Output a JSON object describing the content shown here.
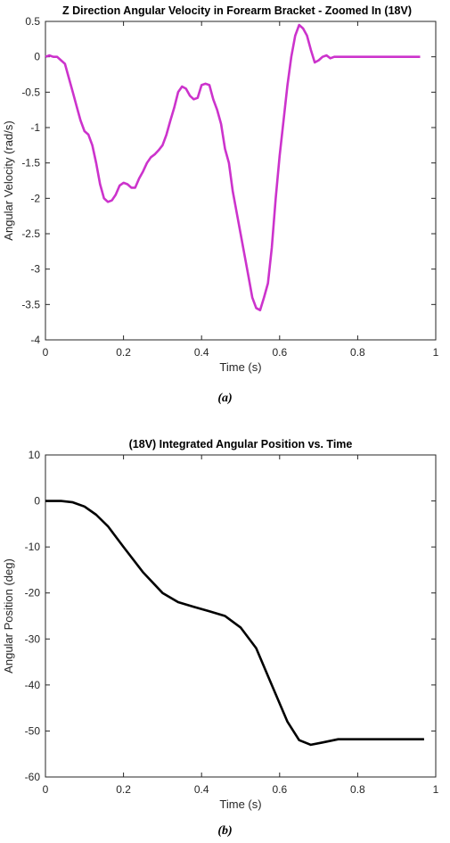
{
  "chart_data": [
    {
      "type": "line",
      "title": "Z Direction Angular Velocity in Forearm Bracket - Zoomed In (18V)",
      "xlabel": "Time (s)",
      "ylabel": "Angular Velocity (rad/s)",
      "xlim": [
        0,
        1
      ],
      "ylim": [
        -4,
        0.5
      ],
      "xticks": [
        "0",
        "0.2",
        "0.4",
        "0.6",
        "0.8",
        "1"
      ],
      "yticks": [
        "-4",
        "-3.5",
        "-3",
        "-2.5",
        "-2",
        "-1.5",
        "-1",
        "-0.5",
        "0",
        "0.5"
      ],
      "grid": false,
      "color": "#cc33cc",
      "caption": "(a)",
      "series": [
        {
          "x": [
            0,
            0.01,
            0.02,
            0.03,
            0.04,
            0.05,
            0.06,
            0.07,
            0.08,
            0.09,
            0.1,
            0.11,
            0.12,
            0.13,
            0.14,
            0.15,
            0.16,
            0.17,
            0.18,
            0.19,
            0.2,
            0.21,
            0.22,
            0.23,
            0.24,
            0.25,
            0.26,
            0.27,
            0.28,
            0.29,
            0.3,
            0.31,
            0.32,
            0.33,
            0.34,
            0.35,
            0.36,
            0.37,
            0.38,
            0.39,
            0.4,
            0.41,
            0.42,
            0.43,
            0.44,
            0.45,
            0.46,
            0.47,
            0.48,
            0.49,
            0.5,
            0.51,
            0.52,
            0.53,
            0.54,
            0.55,
            0.56,
            0.57,
            0.58,
            0.59,
            0.6,
            0.61,
            0.62,
            0.63,
            0.64,
            0.65,
            0.66,
            0.67,
            0.68,
            0.69,
            0.7,
            0.71,
            0.72,
            0.73,
            0.74,
            0.75,
            0.76,
            0.77,
            0.78,
            0.79,
            0.8,
            0.82,
            0.84,
            0.86,
            0.88,
            0.9,
            0.92,
            0.94,
            0.96
          ],
          "y": [
            0,
            0.02,
            0,
            0,
            -0.05,
            -0.1,
            -0.3,
            -0.5,
            -0.7,
            -0.9,
            -1.05,
            -1.1,
            -1.25,
            -1.5,
            -1.8,
            -2.0,
            -2.05,
            -2.03,
            -1.95,
            -1.82,
            -1.78,
            -1.8,
            -1.85,
            -1.85,
            -1.72,
            -1.62,
            -1.5,
            -1.42,
            -1.38,
            -1.32,
            -1.25,
            -1.1,
            -0.9,
            -0.72,
            -0.5,
            -0.42,
            -0.45,
            -0.55,
            -0.6,
            -0.58,
            -0.4,
            -0.38,
            -0.4,
            -0.6,
            -0.75,
            -0.95,
            -1.3,
            -1.5,
            -1.9,
            -2.2,
            -2.5,
            -2.8,
            -3.1,
            -3.4,
            -3.55,
            -3.58,
            -3.4,
            -3.2,
            -2.7,
            -2.0,
            -1.4,
            -0.9,
            -0.4,
            0.0,
            0.3,
            0.45,
            0.4,
            0.3,
            0.1,
            -0.08,
            -0.05,
            0.0,
            0.02,
            -0.02,
            0.0,
            0.0,
            0.0,
            0.0,
            0.0,
            0.0,
            0.0,
            0.0,
            0.0,
            0.0,
            0.0,
            0.0,
            0.0,
            0.0,
            0.0
          ]
        }
      ]
    },
    {
      "type": "line",
      "title": "(18V) Integrated Angular Position vs. Time",
      "xlabel": "Time (s)",
      "ylabel": "Angular Position (deg)",
      "xlim": [
        0,
        1
      ],
      "ylim": [
        -60,
        10
      ],
      "xticks": [
        "0",
        "0.2",
        "0.4",
        "0.6",
        "0.8",
        "1"
      ],
      "yticks": [
        "-60",
        "-50",
        "-40",
        "-30",
        "-20",
        "-10",
        "0",
        "10"
      ],
      "grid": false,
      "color": "#000000",
      "caption": "(b)",
      "series": [
        {
          "x": [
            0,
            0.04,
            0.07,
            0.1,
            0.13,
            0.16,
            0.2,
            0.25,
            0.3,
            0.34,
            0.38,
            0.42,
            0.46,
            0.5,
            0.54,
            0.58,
            0.62,
            0.65,
            0.68,
            0.71,
            0.75,
            0.8,
            0.9,
            0.97
          ],
          "y": [
            0,
            0,
            -0.3,
            -1.2,
            -3,
            -5.5,
            -10,
            -15.5,
            -20,
            -22,
            -23,
            -24,
            -25,
            -27.5,
            -32,
            -40,
            -48,
            -52,
            -53,
            -52.5,
            -51.8,
            -51.8,
            -51.8,
            -51.8
          ]
        }
      ]
    }
  ]
}
